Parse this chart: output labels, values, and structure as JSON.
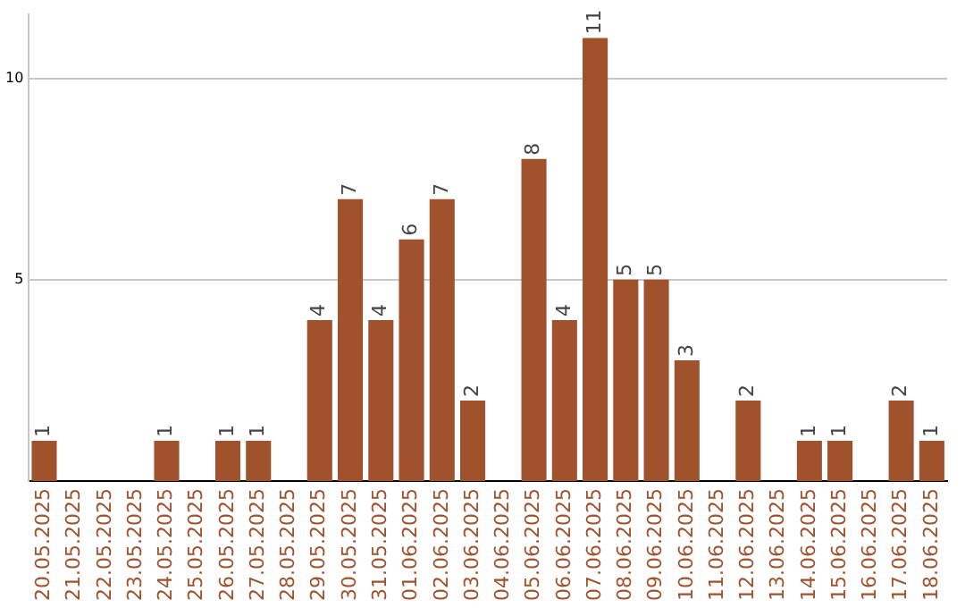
{
  "chart_data": {
    "type": "bar",
    "categories": [
      "20.05.2025",
      "21.05.2025",
      "22.05.2025",
      "23.05.2025",
      "24.05.2025",
      "25.05.2025",
      "26.05.2025",
      "27.05.2025",
      "28.05.2025",
      "29.05.2025",
      "30.05.2025",
      "31.05.2025",
      "01.06.2025",
      "02.06.2025",
      "03.06.2025",
      "04.06.2025",
      "05.06.2025",
      "06.06.2025",
      "07.06.2025",
      "08.06.2025",
      "09.06.2025",
      "10.06.2025",
      "11.06.2025",
      "12.06.2025",
      "13.06.2025",
      "14.06.2025",
      "15.06.2025",
      "16.06.2025",
      "17.06.2025",
      "18.06.2025"
    ],
    "values": [
      1,
      0,
      0,
      0,
      1,
      0,
      1,
      1,
      0,
      4,
      7,
      4,
      6,
      7,
      2,
      0,
      8,
      4,
      11,
      5,
      5,
      3,
      0,
      2,
      0,
      1,
      1,
      0,
      2,
      1
    ],
    "value_labels": [
      "1",
      null,
      null,
      null,
      "1",
      null,
      "1",
      "1",
      null,
      "4",
      "7",
      "4",
      "6",
      "7",
      "2",
      null,
      "8",
      "4",
      "11",
      "5",
      "5",
      "3",
      null,
      "2",
      null,
      "1",
      "1",
      null,
      "2",
      "1"
    ],
    "color": "#a0522d",
    "ylim": [
      0,
      11.6
    ],
    "yticks": [
      5,
      10
    ],
    "grid": "y",
    "legend": false
  }
}
